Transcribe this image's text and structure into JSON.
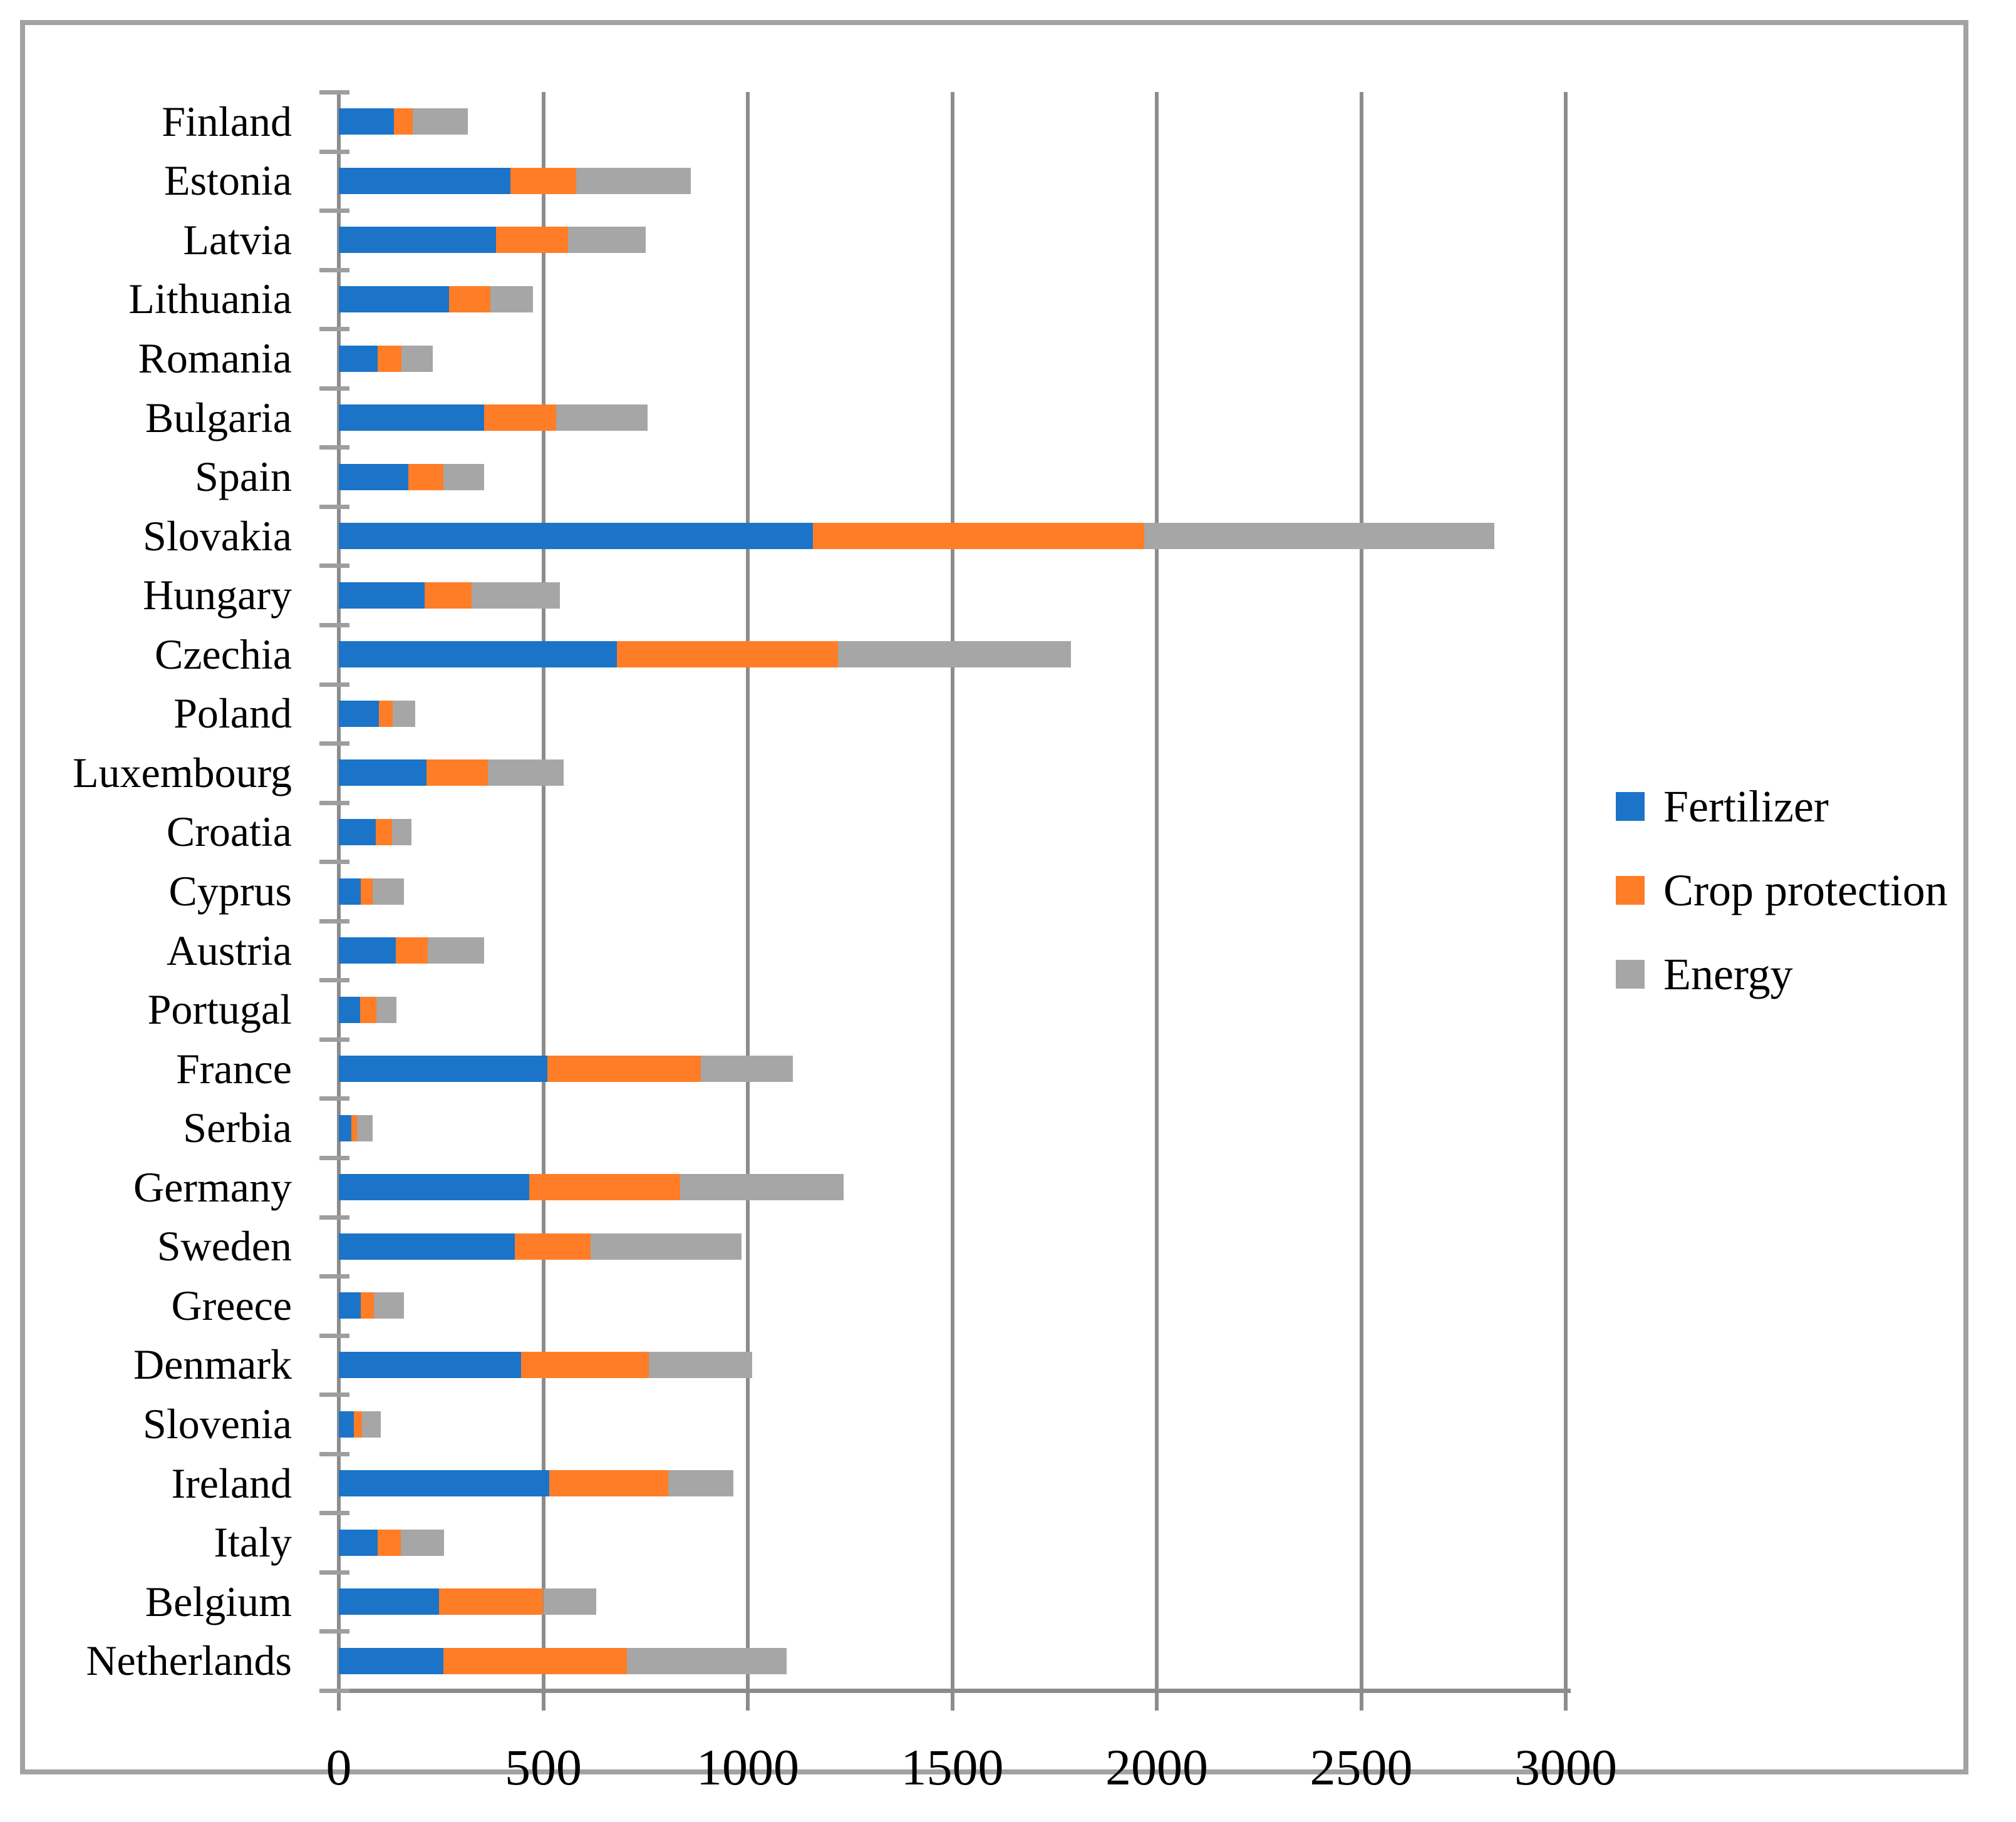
{
  "chart_data": {
    "type": "bar",
    "orientation": "horizontal",
    "stacked": true,
    "title": "",
    "xlabel": "",
    "ylabel": "",
    "xlim": [
      0,
      3000
    ],
    "x_ticks": [
      0,
      500,
      1000,
      1500,
      2000,
      2500,
      3000
    ],
    "grid": true,
    "legend_position": "right-middle",
    "categories": [
      "Finland",
      "Estonia",
      "Latvia",
      "Lithuania",
      "Romania",
      "Bulgaria",
      "Spain",
      "Slovakia",
      "Hungary",
      "Czechia",
      "Poland",
      "Luxembourg",
      "Croatia",
      "Cyprus",
      "Austria",
      "Portugal",
      "France",
      "Serbia",
      "Germany",
      "Sweden",
      "Greece",
      "Denmark",
      "Slovenia",
      "Ireland",
      "Italy",
      "Belgium",
      "Netherlands"
    ],
    "series": [
      {
        "name": "Fertilizer",
        "color": "#1B74C8",
        "values": [
          135,
          420,
          385,
          270,
          95,
          355,
          170,
          1160,
          210,
          680,
          98,
          215,
          90,
          54,
          140,
          52,
          510,
          30,
          465,
          430,
          54,
          445,
          36,
          515,
          95,
          245,
          255
        ]
      },
      {
        "name": "Crop protection",
        "color": "#FF7D27",
        "values": [
          45,
          160,
          175,
          100,
          58,
          177,
          85,
          810,
          115,
          540,
          34,
          150,
          40,
          28,
          77,
          40,
          375,
          15,
          370,
          185,
          32,
          313,
          20,
          290,
          56,
          255,
          450
        ]
      },
      {
        "name": "Energy",
        "color": "#A6A6A6",
        "values": [
          135,
          280,
          190,
          105,
          77,
          223,
          100,
          855,
          215,
          570,
          55,
          185,
          48,
          77,
          138,
          49,
          225,
          38,
          400,
          370,
          74,
          252,
          46,
          160,
          107,
          130,
          390
        ]
      }
    ]
  },
  "colors": {
    "gridline": "#8C8C8C",
    "axis": "#8C8C8C",
    "y_tick": "#9E9E9E",
    "frame_border": "#A2A2A2",
    "background": "#FFFFFF",
    "text": "#000000"
  }
}
